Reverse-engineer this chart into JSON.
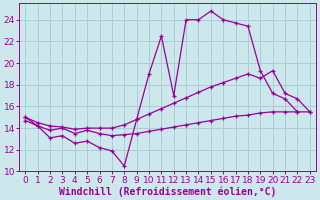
{
  "background_color": "#cce8ec",
  "grid_color": "#aacdd4",
  "line_color": "#990099",
  "marker": "+",
  "xlabel": "Windchill (Refroidissement éolien,°C)",
  "xlabel_fontsize": 7.0,
  "tick_fontsize": 6.5,
  "xlim": [
    -0.5,
    23.5
  ],
  "ylim": [
    10,
    25.5
  ],
  "yticks": [
    10,
    12,
    14,
    16,
    18,
    20,
    22,
    24
  ],
  "xticks": [
    0,
    1,
    2,
    3,
    4,
    5,
    6,
    7,
    8,
    9,
    10,
    11,
    12,
    13,
    14,
    15,
    16,
    17,
    18,
    19,
    20,
    21,
    22,
    23
  ],
  "curve1_x": [
    0,
    1,
    2,
    3,
    4,
    5,
    6,
    7,
    8,
    9,
    10,
    11,
    12,
    13,
    14,
    15,
    16,
    17,
    18,
    19,
    20,
    21,
    22
  ],
  "curve1_y": [
    15.0,
    14.2,
    13.1,
    13.3,
    12.6,
    12.8,
    12.2,
    11.9,
    10.5,
    14.8,
    19.0,
    22.5,
    17.0,
    24.0,
    24.0,
    24.8,
    24.0,
    23.7,
    23.4,
    19.3,
    17.2,
    16.7,
    15.5
  ],
  "curve2_x": [
    0,
    1,
    2,
    3,
    4,
    5,
    6,
    7,
    8,
    9,
    10,
    11,
    12,
    13,
    14,
    15,
    16,
    17,
    18,
    19,
    20,
    21,
    22,
    23
  ],
  "curve2_y": [
    15.0,
    14.5,
    14.2,
    14.1,
    13.9,
    14.0,
    14.0,
    14.0,
    14.3,
    14.8,
    15.3,
    15.8,
    16.3,
    16.8,
    17.3,
    17.8,
    18.2,
    18.6,
    19.0,
    18.6,
    19.3,
    17.2,
    16.7,
    15.5
  ],
  "curve3_x": [
    0,
    1,
    2,
    3,
    4,
    5,
    6,
    7,
    8,
    9,
    10,
    11,
    12,
    13,
    14,
    15,
    16,
    17,
    18,
    19,
    20,
    21,
    22,
    23
  ],
  "curve3_y": [
    14.7,
    14.2,
    13.8,
    14.0,
    13.5,
    13.8,
    13.5,
    13.3,
    13.4,
    13.5,
    13.7,
    13.9,
    14.1,
    14.3,
    14.5,
    14.7,
    14.9,
    15.1,
    15.2,
    15.4,
    15.5,
    15.5,
    15.5,
    15.5
  ]
}
